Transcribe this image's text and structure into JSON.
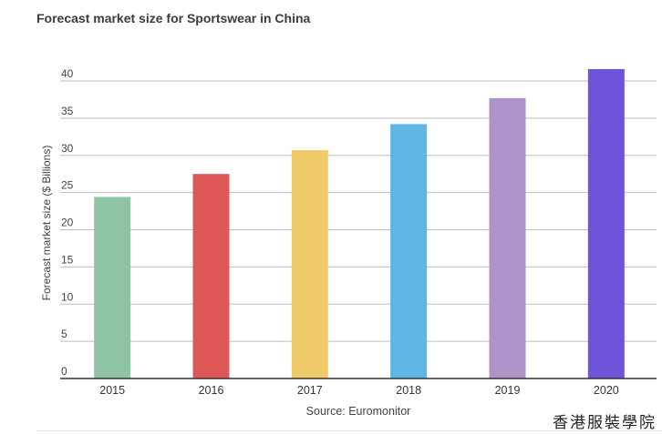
{
  "chart_data": {
    "type": "bar",
    "title": "Forecast market size for Sportswear in China",
    "ylabel": "Forecast market size ($ Billions)",
    "xlabel": "",
    "categories": [
      "2015",
      "2016",
      "2017",
      "2018",
      "2019",
      "2020"
    ],
    "values": [
      24.4,
      27.5,
      30.7,
      34.2,
      37.7,
      41.6
    ],
    "colors": [
      "#8fc3a6",
      "#dd5757",
      "#f0cb6a",
      "#5fb5e3",
      "#ad93c8",
      "#6e54d8"
    ],
    "ylim": [
      0,
      40
    ],
    "yticks": [
      0,
      5,
      10,
      15,
      20,
      25,
      30,
      35,
      40
    ],
    "grid": true,
    "legend": "none"
  },
  "source": "Source: Euromonitor",
  "watermark": "香港服裝學院"
}
